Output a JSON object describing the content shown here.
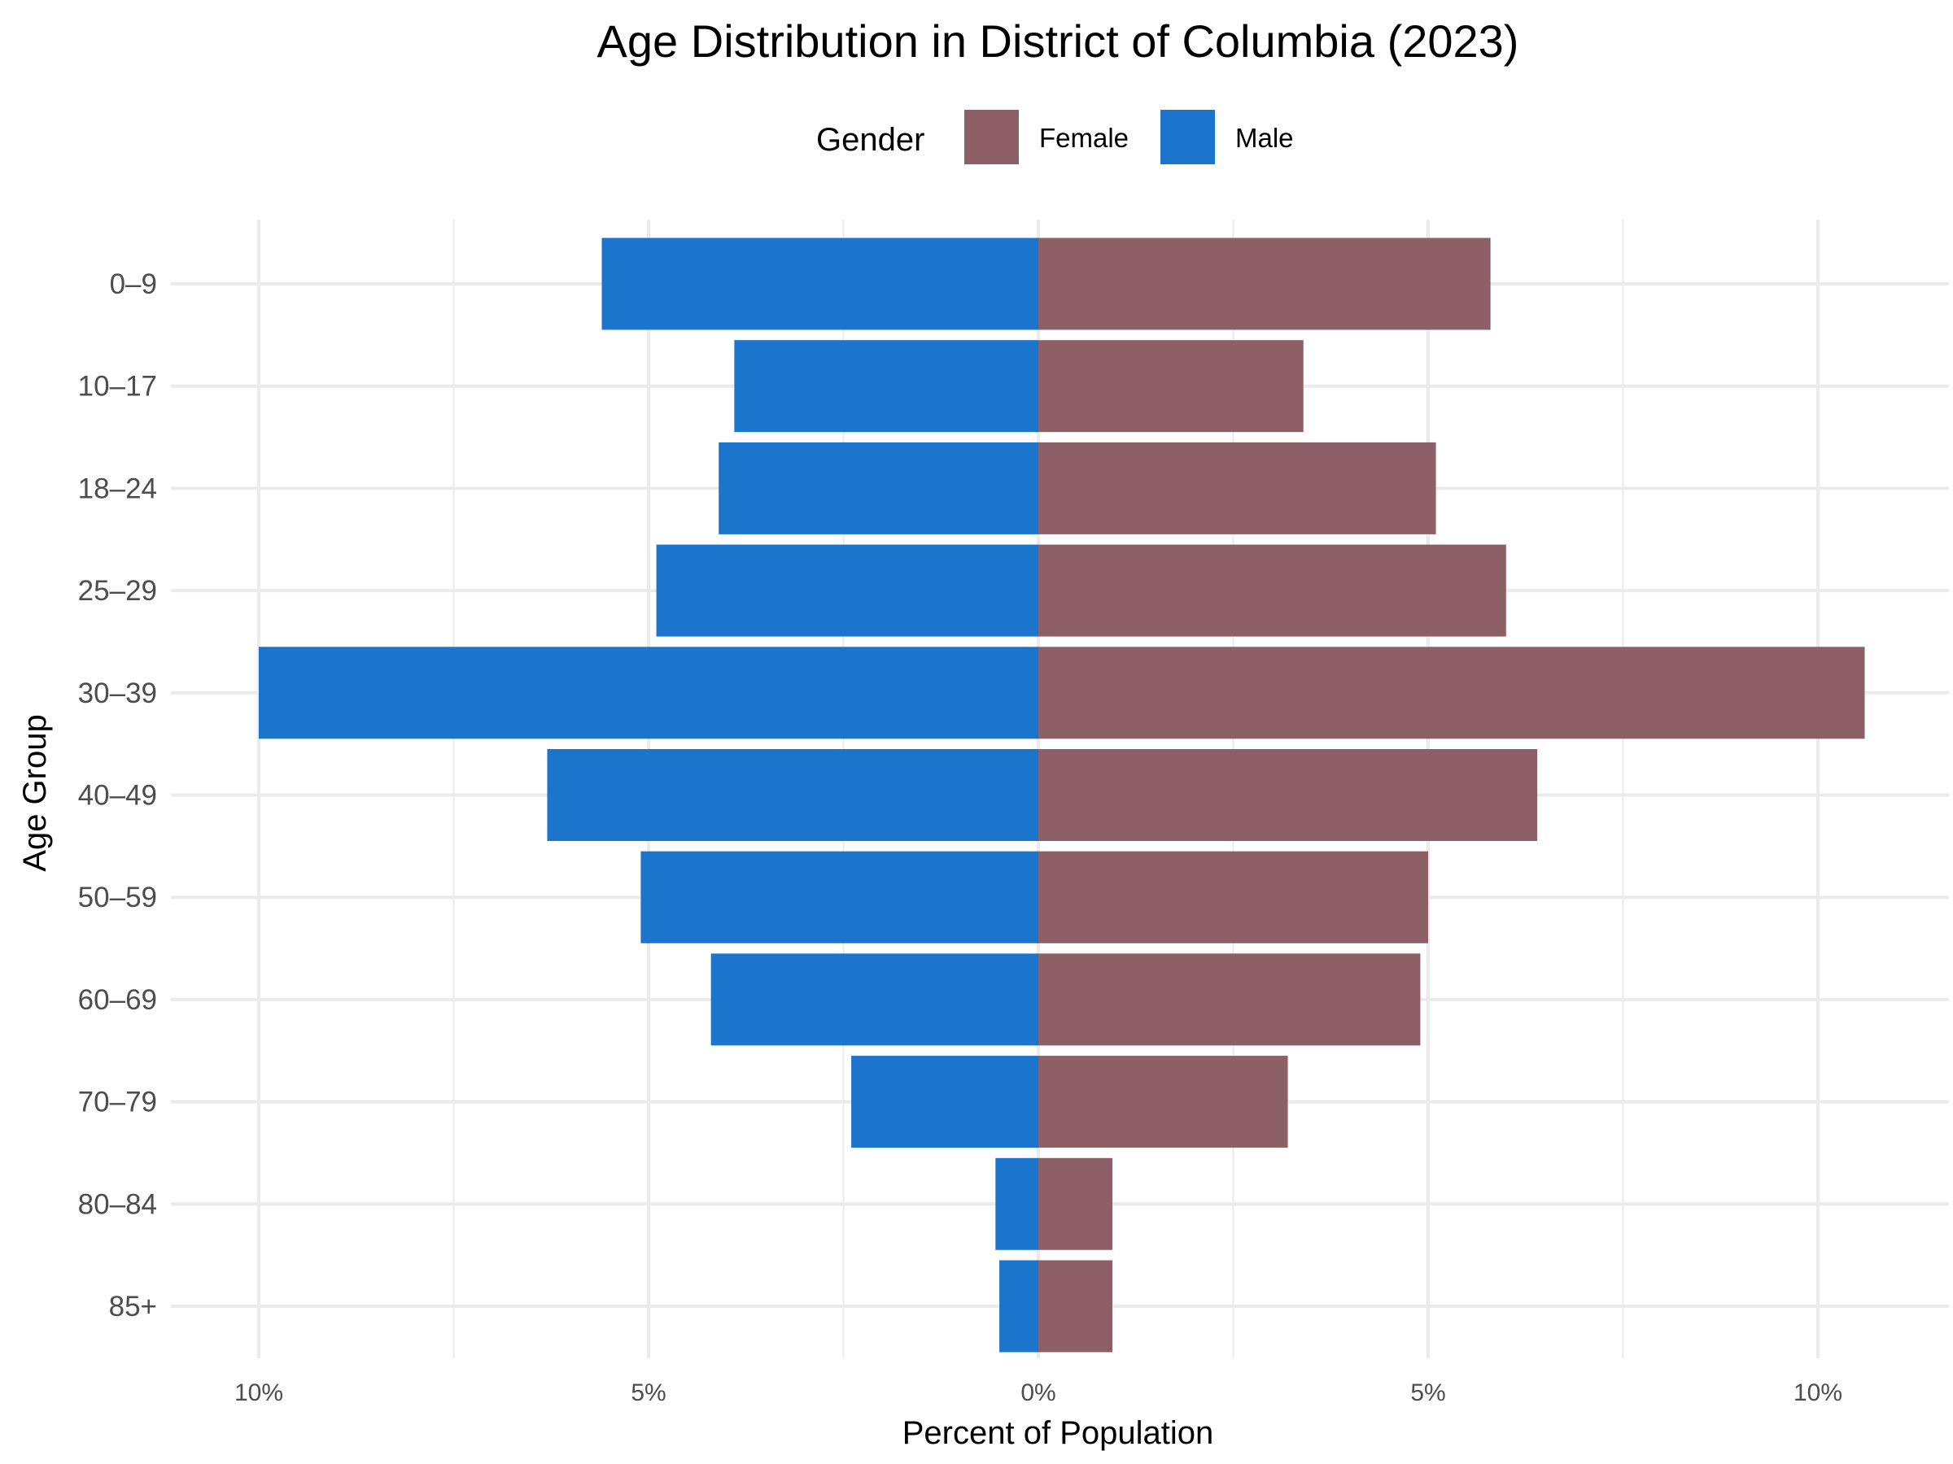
{
  "chart_data": {
    "type": "bar",
    "orientation": "horizontal",
    "subtype": "population-pyramid",
    "title": "Age Distribution in District of Columbia (2023)",
    "xlabel": "Percent of Population",
    "ylabel": "Age Group",
    "legend": {
      "title": "Gender",
      "position": "top",
      "entries": [
        "Female",
        "Male"
      ]
    },
    "categories": [
      "0–9",
      "10–17",
      "18–24",
      "25–29",
      "30–39",
      "40–49",
      "50–59",
      "60–69",
      "70–79",
      "80–84",
      "85+"
    ],
    "series": [
      {
        "name": "Male",
        "side": "left",
        "color": "#1b75cc",
        "values": [
          5.6,
          3.9,
          4.1,
          4.9,
          10.0,
          6.3,
          5.1,
          4.2,
          2.4,
          0.55,
          0.5
        ]
      },
      {
        "name": "Female",
        "side": "right",
        "color": "#8c6066",
        "values": [
          5.8,
          3.4,
          5.1,
          6.0,
          10.6,
          6.4,
          5.0,
          4.9,
          3.2,
          0.95,
          0.95
        ]
      }
    ],
    "xlim": [
      -10.6,
      10.6
    ],
    "xticks": [
      -10,
      -5,
      0,
      5,
      10
    ],
    "xtick_labels": [
      "10%",
      "5%",
      "0%",
      "5%",
      "10%"
    ],
    "grid": true
  }
}
